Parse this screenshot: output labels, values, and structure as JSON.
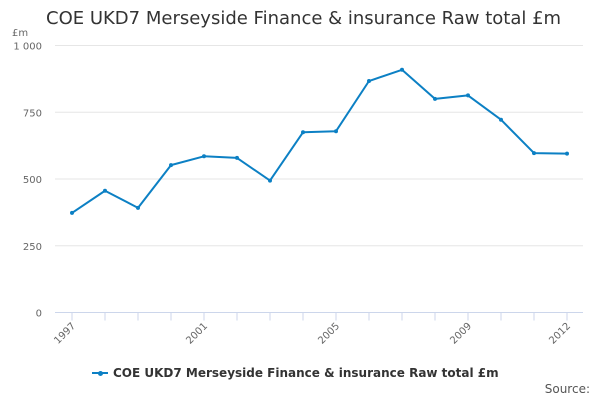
{
  "chart_data": {
    "type": "line",
    "title": "COE UKD7 Merseyside Finance & insurance Raw total £m",
    "ylabel": "£m",
    "xlabel": "",
    "x": [
      1997,
      1998,
      1999,
      2000,
      2001,
      2002,
      2003,
      2004,
      2005,
      2006,
      2007,
      2008,
      2009,
      2010,
      2011,
      2012
    ],
    "x_tick_labels": [
      "1997",
      "2001",
      "2005",
      "2009",
      "2012"
    ],
    "y_tick_labels": [
      "0",
      "250",
      "500",
      "750",
      "1 000"
    ],
    "ylim": [
      0,
      1000
    ],
    "grid": true,
    "legend_placement": "bottom",
    "series": [
      {
        "name": "COE UKD7 Merseyside Finance & insurance Raw total £m",
        "color": "#0c80c4",
        "values": [
          373,
          456,
          392,
          552,
          585,
          579,
          494,
          675,
          679,
          867,
          909,
          800,
          813,
          722,
          597,
          595
        ]
      }
    ]
  },
  "source_label": "Source:"
}
